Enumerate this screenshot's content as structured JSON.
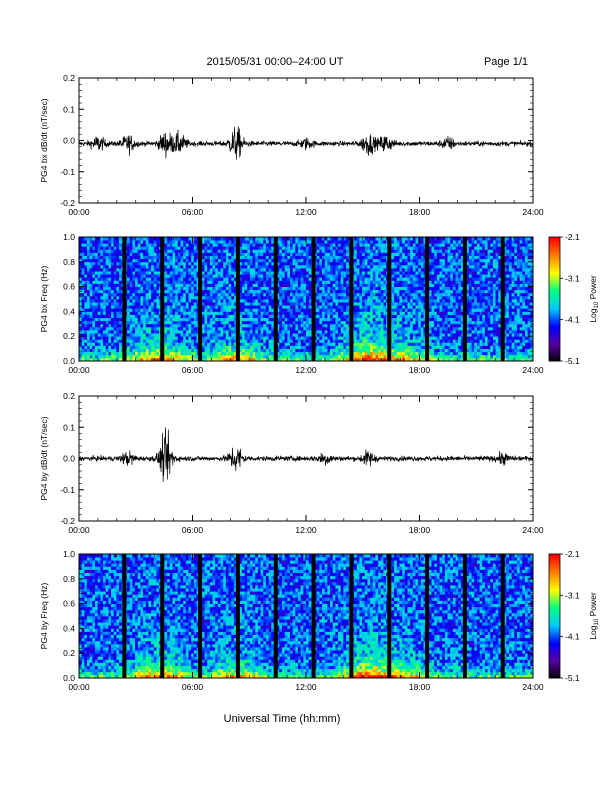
{
  "header": {
    "title": "2015/05/31  00:00–24:00 UT",
    "page_label": "Page 1/1"
  },
  "x_axis": {
    "ticks": [
      "00:00",
      "06:00",
      "12:00",
      "18:00",
      "24:00"
    ],
    "label": "Universal Time (hh:mm)"
  },
  "colorbar": {
    "ticks": [
      "-2.1",
      "-3.1",
      "-4.1",
      "-5.1"
    ],
    "label_main": "Log",
    "label_sub": "10",
    "label_tail": " Power",
    "colors": [
      "#000000",
      "#5a00a0",
      "#0000ff",
      "#00c8ff",
      "#00ff80",
      "#ffff00",
      "#ff8000",
      "#ff0000"
    ]
  },
  "chart_data": [
    {
      "type": "line",
      "ylabel": "PG4 bx dB/dt (nT/sec)",
      "ylim": [
        -0.2,
        0.2
      ],
      "yticks": [
        "0.2",
        "0.1",
        "0.0",
        "-0.1",
        "-0.2"
      ],
      "xlim_hours": [
        0,
        24
      ],
      "baseline": -0.01,
      "bursts": [
        {
          "hour": 1.0,
          "peak": 0.03
        },
        {
          "hour": 2.6,
          "peak": 0.035
        },
        {
          "hour": 4.6,
          "peak": 0.05
        },
        {
          "hour": 5.3,
          "peak": 0.04
        },
        {
          "hour": 8.3,
          "peak": 0.07
        },
        {
          "hour": 12.0,
          "peak": 0.02
        },
        {
          "hour": 15.3,
          "peak": 0.045
        },
        {
          "hour": 16.2,
          "peak": 0.035
        },
        {
          "hour": 19.5,
          "peak": 0.025
        }
      ]
    },
    {
      "type": "heatmap",
      "ylabel": "PG4 bx Freq (Hz)",
      "ylim": [
        0,
        1.0
      ],
      "yticks": [
        "1.0",
        "0.8",
        "0.6",
        "0.4",
        "0.2",
        "0.0"
      ],
      "xlim_hours": [
        0,
        24
      ],
      "zlim_log10_power": [
        -5.1,
        -2.1
      ],
      "data_gap_hours": [
        2.4,
        4.4,
        6.4,
        8.4,
        10.4,
        12.4,
        14.4,
        16.4,
        18.4,
        20.4,
        22.4
      ],
      "colorbar": true
    },
    {
      "type": "line",
      "ylabel": "PG4 by dB/dt (nT/sec)",
      "ylim": [
        -0.2,
        0.2
      ],
      "yticks": [
        "0.2",
        "0.1",
        "0.0",
        "-0.1",
        "-0.2"
      ],
      "xlim_hours": [
        0,
        24
      ],
      "baseline": 0.0,
      "bursts": [
        {
          "hour": 2.6,
          "peak": 0.025
        },
        {
          "hour": 4.6,
          "peak": 0.1
        },
        {
          "hour": 8.3,
          "peak": 0.06
        },
        {
          "hour": 13.0,
          "peak": 0.025
        },
        {
          "hour": 15.3,
          "peak": 0.03
        },
        {
          "hour": 22.4,
          "peak": 0.02
        }
      ]
    },
    {
      "type": "heatmap",
      "ylabel": "PG4 by Freq (Hz)",
      "ylim": [
        0,
        1.0
      ],
      "yticks": [
        "1.0",
        "0.8",
        "0.6",
        "0.4",
        "0.2",
        "0.0"
      ],
      "xlim_hours": [
        0,
        24
      ],
      "zlim_log10_power": [
        -5.1,
        -2.1
      ],
      "data_gap_hours": [
        2.4,
        4.4,
        6.4,
        8.4,
        10.4,
        12.4,
        14.4,
        16.4,
        18.4,
        20.4,
        22.4
      ],
      "colorbar": true
    }
  ]
}
